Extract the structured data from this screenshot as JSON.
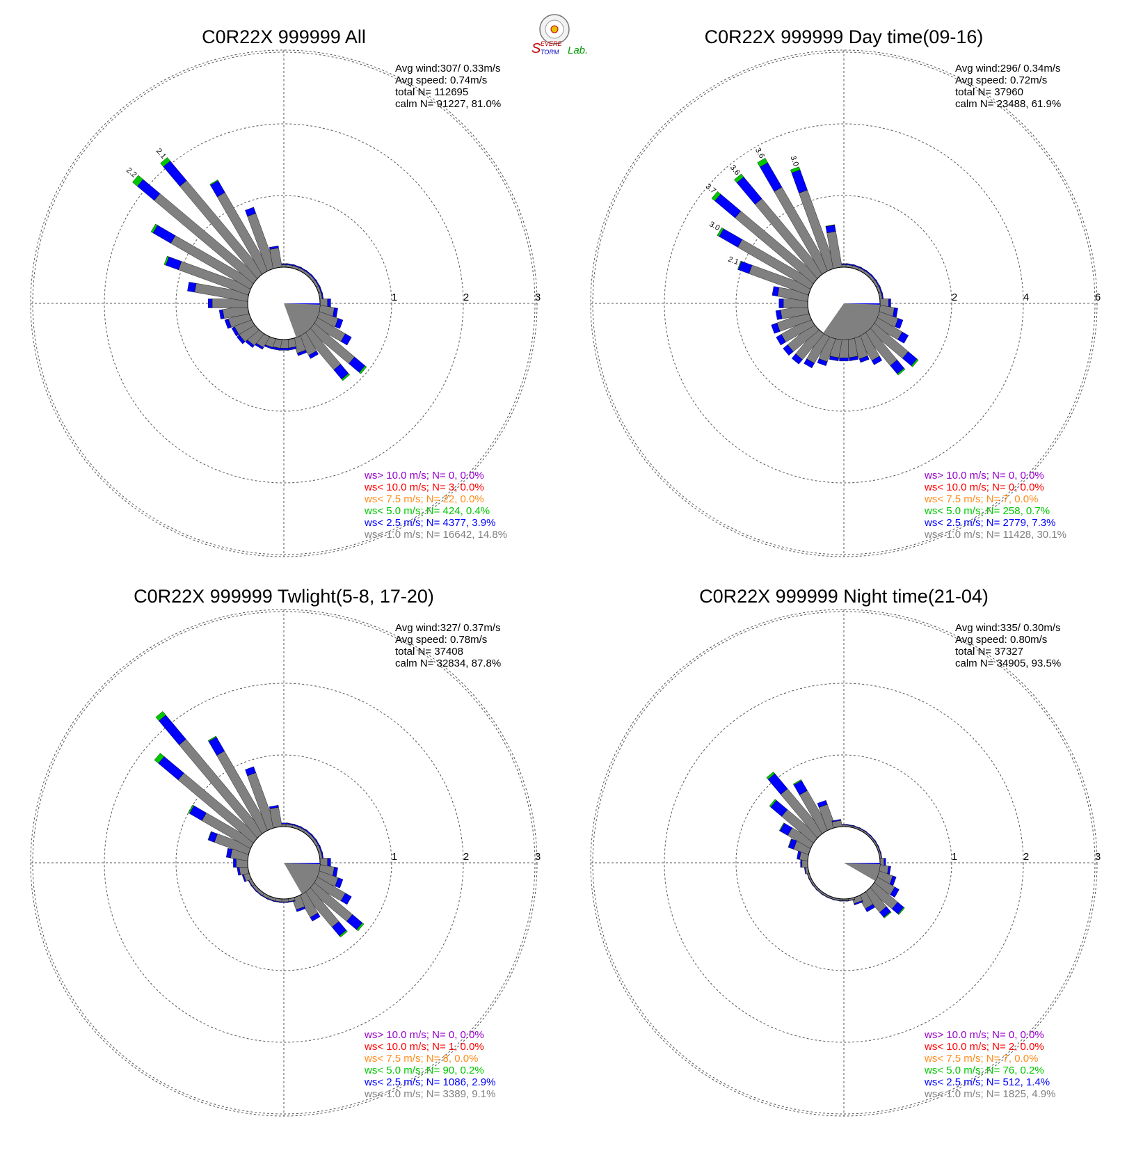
{
  "colors": {
    "bin_lt1": "#808080",
    "bin_lt25": "#0000ff",
    "bin_lt5": "#00c800",
    "bin_lt75": "#ff8c1a",
    "bin_lt10": "#ff0000",
    "bin_gt10": "#9900cc",
    "grid": "#555555"
  },
  "logo": {
    "icon": "severe-storm-lab-logo",
    "text_a": "EVERE",
    "text_b": "TORM",
    "text_c": "Lab."
  },
  "legend_keys": [
    "gt10",
    "lt10",
    "lt75",
    "lt5",
    "lt25",
    "lt1"
  ],
  "chart_data": [
    {
      "type": "windrose",
      "title": "C0R22X 999999 All",
      "stats": {
        "avg_wind": "Avg wind:307/ 0.33m/s",
        "avg_speed": "Avg speed: 0.74m/s",
        "total": "total N=      112695",
        "calm": "calm N=  91227,  81.0%"
      },
      "rings": [
        "1",
        "2",
        "3"
      ],
      "rmax": 3,
      "bar_labels": [
        {
          "dir": 310,
          "text": "2.2"
        },
        {
          "dir": 320,
          "text": "2.1"
        }
      ],
      "calm_wedge": [
        90,
        160
      ],
      "directions": [
        0,
        10,
        20,
        30,
        40,
        50,
        60,
        70,
        80,
        90,
        100,
        110,
        120,
        130,
        140,
        150,
        160,
        170,
        180,
        190,
        200,
        210,
        220,
        230,
        240,
        250,
        260,
        270,
        280,
        290,
        300,
        310,
        320,
        330,
        340,
        350
      ],
      "totals": [
        0.05,
        0.05,
        0.05,
        0.05,
        0.05,
        0.05,
        0.05,
        0.05,
        0.05,
        0.15,
        0.25,
        0.35,
        0.55,
        0.95,
        0.85,
        0.35,
        0.25,
        0.15,
        0.15,
        0.15,
        0.15,
        0.2,
        0.25,
        0.3,
        0.3,
        0.35,
        0.4,
        0.55,
        0.85,
        1.25,
        1.6,
        2.2,
        2.1,
        1.45,
        0.9,
        0.3
      ],
      "blue_frac": [
        0.3,
        0.3,
        0.3,
        0.3,
        0.3,
        0.3,
        0.3,
        0.3,
        0.3,
        0.3,
        0.2,
        0.2,
        0.18,
        0.2,
        0.2,
        0.15,
        0.15,
        0.2,
        0.2,
        0.2,
        0.15,
        0.15,
        0.15,
        0.15,
        0.15,
        0.15,
        0.12,
        0.1,
        0.12,
        0.15,
        0.18,
        0.14,
        0.17,
        0.13,
        0.1,
        0.1
      ],
      "green_frac": [
        0,
        0,
        0,
        0,
        0,
        0,
        0,
        0,
        0,
        0,
        0,
        0,
        0,
        0.03,
        0.03,
        0,
        0,
        0,
        0,
        0,
        0,
        0,
        0,
        0,
        0,
        0,
        0,
        0,
        0,
        0.02,
        0.02,
        0.04,
        0.03,
        0.01,
        0,
        0
      ],
      "legend": [
        "ws> 10.0 m/s; N=     0,  0.0%",
        "ws< 10.0 m/s; N=     3,  0.0%",
        "ws<  7.5 m/s; N=    22,  0.0%",
        "ws<  5.0 m/s; N=   424,  0.4%",
        "ws<  2.5 m/s; N=  4377,  3.9%",
        "ws<  1.0 m/s; N= 16642, 14.8%"
      ]
    },
    {
      "type": "windrose",
      "title": "C0R22X 999999 Day time(09-16)",
      "stats": {
        "avg_wind": "Avg wind:296/ 0.34m/s",
        "avg_speed": "Avg speed: 0.72m/s",
        "total": "total N=       37960",
        "calm": "calm N=  23488,  61.9%"
      },
      "rings": [
        "2",
        "4",
        "6"
      ],
      "rmax": 6,
      "bar_labels": [
        {
          "dir": 290,
          "text": "2.1"
        },
        {
          "dir": 300,
          "text": "3.0"
        },
        {
          "dir": 310,
          "text": "3.7"
        },
        {
          "dir": 320,
          "text": "3.6"
        },
        {
          "dir": 330,
          "text": "3.6"
        },
        {
          "dir": 340,
          "text": "3.0"
        }
      ],
      "calm_wedge": [
        90,
        215
      ],
      "directions": [
        0,
        10,
        20,
        30,
        40,
        50,
        60,
        70,
        80,
        90,
        100,
        110,
        120,
        130,
        140,
        150,
        160,
        170,
        180,
        190,
        200,
        210,
        220,
        230,
        240,
        250,
        260,
        270,
        280,
        290,
        300,
        310,
        320,
        330,
        340,
        350
      ],
      "totals": [
        0.1,
        0.1,
        0.1,
        0.1,
        0.1,
        0.1,
        0.1,
        0.1,
        0.1,
        0.3,
        0.5,
        0.7,
        1.0,
        1.6,
        1.5,
        0.9,
        0.7,
        0.6,
        0.6,
        0.6,
        0.8,
        1.0,
        1.1,
        1.1,
        1.1,
        1.1,
        0.9,
        0.8,
        1.0,
        2.1,
        3.0,
        3.7,
        3.6,
        3.6,
        3.0,
        1.2
      ],
      "blue_frac": [
        0.3,
        0.3,
        0.3,
        0.3,
        0.3,
        0.3,
        0.3,
        0.3,
        0.3,
        0.2,
        0.2,
        0.2,
        0.2,
        0.2,
        0.2,
        0.15,
        0.15,
        0.15,
        0.15,
        0.15,
        0.15,
        0.15,
        0.15,
        0.15,
        0.15,
        0.15,
        0.15,
        0.15,
        0.15,
        0.15,
        0.2,
        0.2,
        0.22,
        0.22,
        0.2,
        0.15
      ],
      "green_frac": [
        0,
        0,
        0,
        0,
        0,
        0,
        0,
        0,
        0,
        0,
        0,
        0,
        0,
        0.03,
        0.03,
        0,
        0,
        0,
        0,
        0,
        0,
        0,
        0,
        0,
        0,
        0,
        0,
        0,
        0,
        0.01,
        0.02,
        0.03,
        0.03,
        0.04,
        0.03,
        0.01
      ],
      "legend": [
        "ws> 10.0 m/s; N=     0,  0.0%",
        "ws< 10.0 m/s; N=     0,  0.0%",
        "ws<  7.5 m/s; N=     7,  0.0%",
        "ws<  5.0 m/s; N=   258,  0.7%",
        "ws<  2.5 m/s; N=  2779,  7.3%",
        "ws<  1.0 m/s; N= 11428, 30.1%"
      ]
    },
    {
      "type": "windrose",
      "title": "C0R22X 999999 Twlight(5-8, 17-20)",
      "stats": {
        "avg_wind": "Avg wind:327/ 0.37m/s",
        "avg_speed": "Avg speed: 0.78m/s",
        "total": "total N=       37408",
        "calm": "calm N=  32834,  87.8%"
      },
      "rings": [
        "1",
        "2",
        "3"
      ],
      "rmax": 3,
      "bar_labels": [],
      "calm_wedge": [
        90,
        150
      ],
      "directions": [
        0,
        10,
        20,
        30,
        40,
        50,
        60,
        70,
        80,
        90,
        100,
        110,
        120,
        130,
        140,
        150,
        160,
        170,
        180,
        190,
        200,
        210,
        220,
        230,
        240,
        250,
        260,
        270,
        280,
        290,
        300,
        310,
        320,
        330,
        340,
        350
      ],
      "totals": [
        0.05,
        0.05,
        0.05,
        0.05,
        0.05,
        0.05,
        0.05,
        0.05,
        0.05,
        0.15,
        0.25,
        0.35,
        0.55,
        0.9,
        0.8,
        0.4,
        0.2,
        0.05,
        0.05,
        0.05,
        0.05,
        0.05,
        0.05,
        0.05,
        0.05,
        0.1,
        0.15,
        0.2,
        0.3,
        0.6,
        1.0,
        1.8,
        2.2,
        1.5,
        0.9,
        0.3
      ],
      "blue_frac": [
        0.3,
        0.3,
        0.3,
        0.3,
        0.3,
        0.3,
        0.3,
        0.3,
        0.3,
        0.3,
        0.2,
        0.2,
        0.18,
        0.2,
        0.2,
        0.15,
        0.15,
        0.2,
        0.2,
        0.2,
        0.2,
        0.2,
        0.2,
        0.2,
        0.2,
        0.2,
        0.2,
        0.2,
        0.2,
        0.15,
        0.2,
        0.2,
        0.2,
        0.15,
        0.1,
        0.1
      ],
      "green_frac": [
        0,
        0,
        0,
        0,
        0,
        0,
        0,
        0,
        0,
        0,
        0,
        0,
        0,
        0.03,
        0.03,
        0,
        0,
        0,
        0,
        0,
        0,
        0,
        0,
        0,
        0,
        0,
        0,
        0,
        0,
        0.01,
        0.02,
        0.04,
        0.03,
        0.01,
        0,
        0
      ],
      "legend": [
        "ws> 10.0 m/s; N=     0,  0.0%",
        "ws< 10.0 m/s; N=     1,  0.0%",
        "ws<  7.5 m/s; N=     8,  0.0%",
        "ws<  5.0 m/s; N=    90,  0.2%",
        "ws<  2.5 m/s; N=  1086,  2.9%",
        "ws<  1.0 m/s; N=  3389,  9.1%"
      ]
    },
    {
      "type": "windrose",
      "title": "C0R22X 999999 Night time(21-04)",
      "stats": {
        "avg_wind": "Avg wind:335/ 0.30m/s",
        "avg_speed": "Avg speed: 0.80m/s",
        "total": "total N=       37327",
        "calm": "calm N=  34905,  93.5%"
      },
      "rings": [
        "1",
        "2",
        "3"
      ],
      "rmax": 3,
      "bar_labels": [],
      "calm_wedge": [
        90,
        120
      ],
      "directions": [
        0,
        10,
        20,
        30,
        40,
        50,
        60,
        70,
        80,
        90,
        100,
        110,
        120,
        130,
        140,
        150,
        160,
        170,
        180,
        190,
        200,
        210,
        220,
        230,
        240,
        250,
        260,
        270,
        280,
        290,
        300,
        310,
        320,
        330,
        340,
        350
      ],
      "totals": [
        0.03,
        0.03,
        0.03,
        0.03,
        0.03,
        0.03,
        0.03,
        0.03,
        0.03,
        0.08,
        0.15,
        0.25,
        0.35,
        0.55,
        0.45,
        0.25,
        0.1,
        0.03,
        0.03,
        0.03,
        0.03,
        0.03,
        0.03,
        0.03,
        0.03,
        0.03,
        0.05,
        0.1,
        0.15,
        0.3,
        0.5,
        0.8,
        1.1,
        0.8,
        0.4,
        0.1
      ],
      "blue_frac": [
        0.3,
        0.3,
        0.3,
        0.3,
        0.3,
        0.3,
        0.3,
        0.3,
        0.3,
        0.3,
        0.2,
        0.2,
        0.2,
        0.2,
        0.2,
        0.2,
        0.2,
        0.2,
        0.2,
        0.2,
        0.2,
        0.2,
        0.2,
        0.2,
        0.2,
        0.2,
        0.2,
        0.2,
        0.25,
        0.25,
        0.25,
        0.25,
        0.25,
        0.2,
        0.15,
        0.15
      ],
      "green_frac": [
        0,
        0,
        0,
        0,
        0,
        0,
        0,
        0,
        0,
        0,
        0,
        0,
        0,
        0.03,
        0.03,
        0,
        0,
        0,
        0,
        0,
        0,
        0,
        0,
        0,
        0,
        0,
        0,
        0,
        0,
        0.02,
        0.02,
        0.03,
        0.03,
        0.02,
        0,
        0
      ],
      "legend": [
        "ws> 10.0 m/s; N=     0,  0.0%",
        "ws< 10.0 m/s; N=     2,  0.0%",
        "ws<  7.5 m/s; N=     7,  0.0%",
        "ws<  5.0 m/s; N=    76,  0.2%",
        "ws<  2.5 m/s; N=   512,  1.4%",
        "ws<  1.0 m/s; N=  1825,  4.9%"
      ]
    }
  ]
}
